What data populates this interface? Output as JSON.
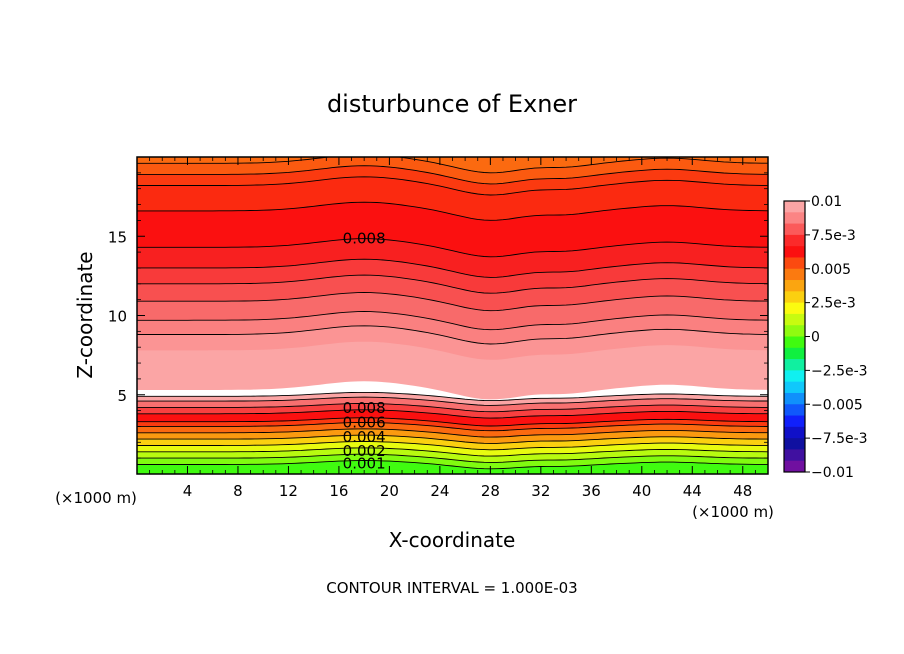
{
  "chart_data": {
    "type": "contour",
    "title": "disturbunce of Exner",
    "xlabel": "X-coordinate",
    "ylabel": "Z-coordinate",
    "x_unit": "(×1000 m)",
    "x_unit_right": "(×1000 m)",
    "xlim": [
      0,
      50
    ],
    "ylim": [
      0,
      20
    ],
    "x_ticks": [
      "4",
      "8",
      "12",
      "16",
      "20",
      "24",
      "28",
      "32",
      "36",
      "40",
      "44",
      "48"
    ],
    "x_tick_values": [
      4,
      8,
      12,
      16,
      20,
      24,
      28,
      32,
      36,
      40,
      44,
      48
    ],
    "y_ticks": [
      "5",
      "10",
      "15"
    ],
    "y_tick_values": [
      5,
      10,
      15
    ],
    "contour_interval_label": "CONTOUR INTERVAL = 1.000E-03",
    "contour_labels": [
      {
        "text": "0.008",
        "x": 18,
        "z": 14.3
      },
      {
        "text": "0.008",
        "x": 18,
        "z": 3.9
      },
      {
        "text": "0.006",
        "x": 18,
        "z": 3.0
      },
      {
        "text": "0.004",
        "x": 18,
        "z": 2.1
      },
      {
        "text": "0.002",
        "x": 18,
        "z": 1.2
      },
      {
        "text": "0.001",
        "x": 18,
        "z": 0.4
      }
    ],
    "colorbar": {
      "labels": [
        "0.01",
        "7.5e-3",
        "0.005",
        "2.5e-3",
        "0",
        "−2.5e-3",
        "−0.005",
        "−7.5e-3",
        "−0.01"
      ],
      "values": [
        0.01,
        0.0075,
        0.005,
        0.0025,
        0,
        -0.0025,
        -0.005,
        -0.0075,
        -0.01
      ],
      "colors": [
        "#fba5a5",
        "#fb8484",
        "#fb5a5a",
        "#fb2a2a",
        "#fb1010",
        "#fb4a10",
        "#fb7a10",
        "#fba510",
        "#fbd010",
        "#fbfb10",
        "#c8fb10",
        "#90fb10",
        "#40fb10",
        "#10f040",
        "#10f0a0",
        "#10f0f0",
        "#10c8fb",
        "#1090fb",
        "#1058fb",
        "#1020fb",
        "#1010c8",
        "#1010a0",
        "#4010a0",
        "#7010a0"
      ]
    },
    "bands": [
      {
        "z": 19.6,
        "color": "#fb5a10"
      },
      {
        "z": 18.9,
        "color": "#fb3a10"
      },
      {
        "z": 18.2,
        "color": "#fb2a10"
      },
      {
        "z": 16.6,
        "color": "#fb1010"
      },
      {
        "z": 14.3,
        "color": "#f82020"
      },
      {
        "z": 13.0,
        "color": "#f83a3a"
      },
      {
        "z": 12.0,
        "color": "#f85050"
      },
      {
        "z": 10.9,
        "color": "#f86a6a"
      },
      {
        "z": 9.7,
        "color": "#fa8080"
      },
      {
        "z": 8.8,
        "color": "#fb9494"
      },
      {
        "z": 7.8,
        "color": "#fba5a5"
      },
      {
        "z": 5.3,
        "color": "#ffffff"
      },
      {
        "z": 4.9,
        "color": "#fba5a5"
      },
      {
        "z": 4.6,
        "color": "#f87070"
      },
      {
        "z": 4.2,
        "color": "#f84040"
      },
      {
        "z": 3.8,
        "color": "#fb1010"
      },
      {
        "z": 3.3,
        "color": "#fb3a10"
      },
      {
        "z": 3.0,
        "color": "#fb6a10"
      },
      {
        "z": 2.6,
        "color": "#fb9a10"
      },
      {
        "z": 2.2,
        "color": "#fbd010"
      },
      {
        "z": 1.8,
        "color": "#e8fb10"
      },
      {
        "z": 1.4,
        "color": "#b8fb10"
      },
      {
        "z": 1.0,
        "color": "#80fb10"
      },
      {
        "z": 0.6,
        "color": "#40fb10"
      }
    ]
  }
}
